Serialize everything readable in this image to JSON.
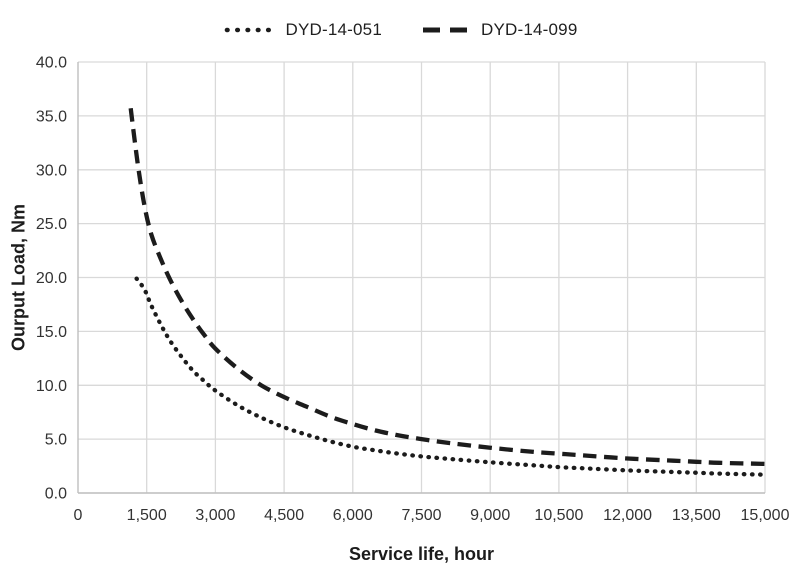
{
  "page": {
    "background": "#ffffff"
  },
  "legend": {
    "items": [
      {
        "label": "DYD-14-051",
        "line_style": "dotted"
      },
      {
        "label": "DYD-14-099",
        "line_style": "dashed"
      }
    ]
  },
  "chart_data": {
    "type": "line",
    "title": "",
    "xlabel": "Service life, hour",
    "ylabel": "Ourput Load, Nm",
    "xlim": [
      0,
      15000
    ],
    "ylim": [
      0,
      40
    ],
    "grid": true,
    "legend_position": "top-center",
    "gridline_color": "#d9d9d9",
    "axis_line_color": "#bfbfbf",
    "tick_label_color": "#333333",
    "x_ticks": [
      0,
      1500,
      3000,
      4500,
      6000,
      7500,
      9000,
      10500,
      12000,
      13500,
      15000
    ],
    "x_tick_labels": [
      "0",
      "1,500",
      "3,000",
      "4,500",
      "6,000",
      "7,500",
      "9,000",
      "10,500",
      "12,000",
      "13,500",
      "15,000"
    ],
    "y_ticks": [
      0,
      5,
      10,
      15,
      20,
      25,
      30,
      35,
      40
    ],
    "y_tick_labels": [
      "0.0",
      "5.0",
      "10.0",
      "15.0",
      "20.0",
      "25.0",
      "30.0",
      "35.0",
      "40.0"
    ],
    "series": [
      {
        "name": "DYD-14-051",
        "line_style": "dotted",
        "color": "#1c1c1c",
        "points": [
          [
            1280,
            19.9
          ],
          [
            1450,
            18.9
          ],
          [
            1600,
            17.4
          ],
          [
            1800,
            15.7
          ],
          [
            2000,
            14.2
          ],
          [
            2250,
            12.7
          ],
          [
            2500,
            11.4
          ],
          [
            2750,
            10.4
          ],
          [
            3000,
            9.5
          ],
          [
            3500,
            8.1
          ],
          [
            4000,
            7.0
          ],
          [
            4500,
            6.1
          ],
          [
            5000,
            5.4
          ],
          [
            5500,
            4.8
          ],
          [
            6000,
            4.3
          ],
          [
            6500,
            3.95
          ],
          [
            7000,
            3.65
          ],
          [
            7500,
            3.4
          ],
          [
            8000,
            3.2
          ],
          [
            9000,
            2.85
          ],
          [
            10000,
            2.55
          ],
          [
            10500,
            2.4
          ],
          [
            11000,
            2.3
          ],
          [
            12000,
            2.1
          ],
          [
            13000,
            1.95
          ],
          [
            13500,
            1.88
          ],
          [
            14000,
            1.8
          ],
          [
            15000,
            1.7
          ]
        ]
      },
      {
        "name": "DYD-14-099",
        "line_style": "dashed",
        "color": "#1c1c1c",
        "points": [
          [
            1150,
            35.7
          ],
          [
            1300,
            30.7
          ],
          [
            1450,
            26.7
          ],
          [
            1600,
            24.0
          ],
          [
            1800,
            21.8
          ],
          [
            2000,
            19.9
          ],
          [
            2250,
            17.9
          ],
          [
            2500,
            16.2
          ],
          [
            2750,
            14.7
          ],
          [
            3000,
            13.4
          ],
          [
            3500,
            11.5
          ],
          [
            4000,
            10.0
          ],
          [
            4500,
            8.9
          ],
          [
            5000,
            8.0
          ],
          [
            5500,
            7.1
          ],
          [
            6000,
            6.4
          ],
          [
            6500,
            5.8
          ],
          [
            7000,
            5.35
          ],
          [
            7500,
            5.0
          ],
          [
            8000,
            4.7
          ],
          [
            9000,
            4.2
          ],
          [
            10000,
            3.8
          ],
          [
            10500,
            3.65
          ],
          [
            11000,
            3.5
          ],
          [
            12000,
            3.2
          ],
          [
            13000,
            3.0
          ],
          [
            13500,
            2.9
          ],
          [
            14000,
            2.8
          ],
          [
            15000,
            2.7
          ]
        ]
      }
    ]
  }
}
